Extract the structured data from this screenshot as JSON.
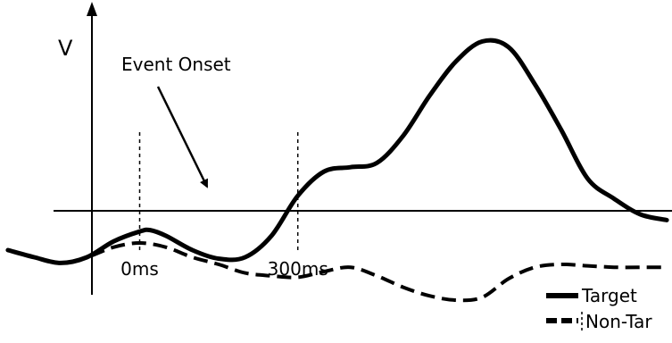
{
  "chart_data": {
    "type": "line",
    "ylabel": "V",
    "annotation": "Event Onset",
    "markers": [
      {
        "label": "0ms",
        "x": 0
      },
      {
        "label": "300ms",
        "x": 300
      }
    ],
    "xlim": [
      -265,
      1010
    ],
    "ylim": [
      -6.5,
      17.5
    ],
    "grid": false,
    "legend": {
      "position": "bottom-right",
      "entries": [
        "Target",
        "Non-Tar"
      ]
    },
    "series": [
      {
        "name": "Target",
        "style": "solid",
        "color": "#000000",
        "x": [
          -250,
          -200,
          -150,
          -100,
          -50,
          0,
          20,
          50,
          100,
          150,
          200,
          250,
          300,
          350,
          400,
          450,
          500,
          550,
          600,
          650,
          700,
          750,
          800,
          850,
          900,
          950,
          1000
        ],
        "y": [
          0,
          -0.5,
          -0.9,
          -0.5,
          0.6,
          1.3,
          1.4,
          1.0,
          0,
          -0.6,
          -0.5,
          1.0,
          3.8,
          5.5,
          5.8,
          6.1,
          8.0,
          10.8,
          13.2,
          14.6,
          14.2,
          11.6,
          8.4,
          5.0,
          3.6,
          2.5,
          2.1
        ]
      },
      {
        "name": "Non-Tar",
        "style": "dashed",
        "color": "#000000",
        "x": [
          -250,
          -200,
          -150,
          -100,
          -50,
          0,
          50,
          100,
          150,
          200,
          250,
          300,
          350,
          400,
          450,
          500,
          550,
          600,
          650,
          700,
          750,
          800,
          850,
          900,
          950,
          1000
        ],
        "y": [
          0,
          -0.5,
          -0.9,
          -0.5,
          0.2,
          0.5,
          0.2,
          -0.5,
          -1.0,
          -1.6,
          -1.8,
          -1.9,
          -1.5,
          -1.2,
          -1.8,
          -2.6,
          -3.2,
          -3.5,
          -3.3,
          -2.0,
          -1.2,
          -1.0,
          -1.1,
          -1.2,
          -1.2,
          -1.2
        ]
      }
    ]
  }
}
